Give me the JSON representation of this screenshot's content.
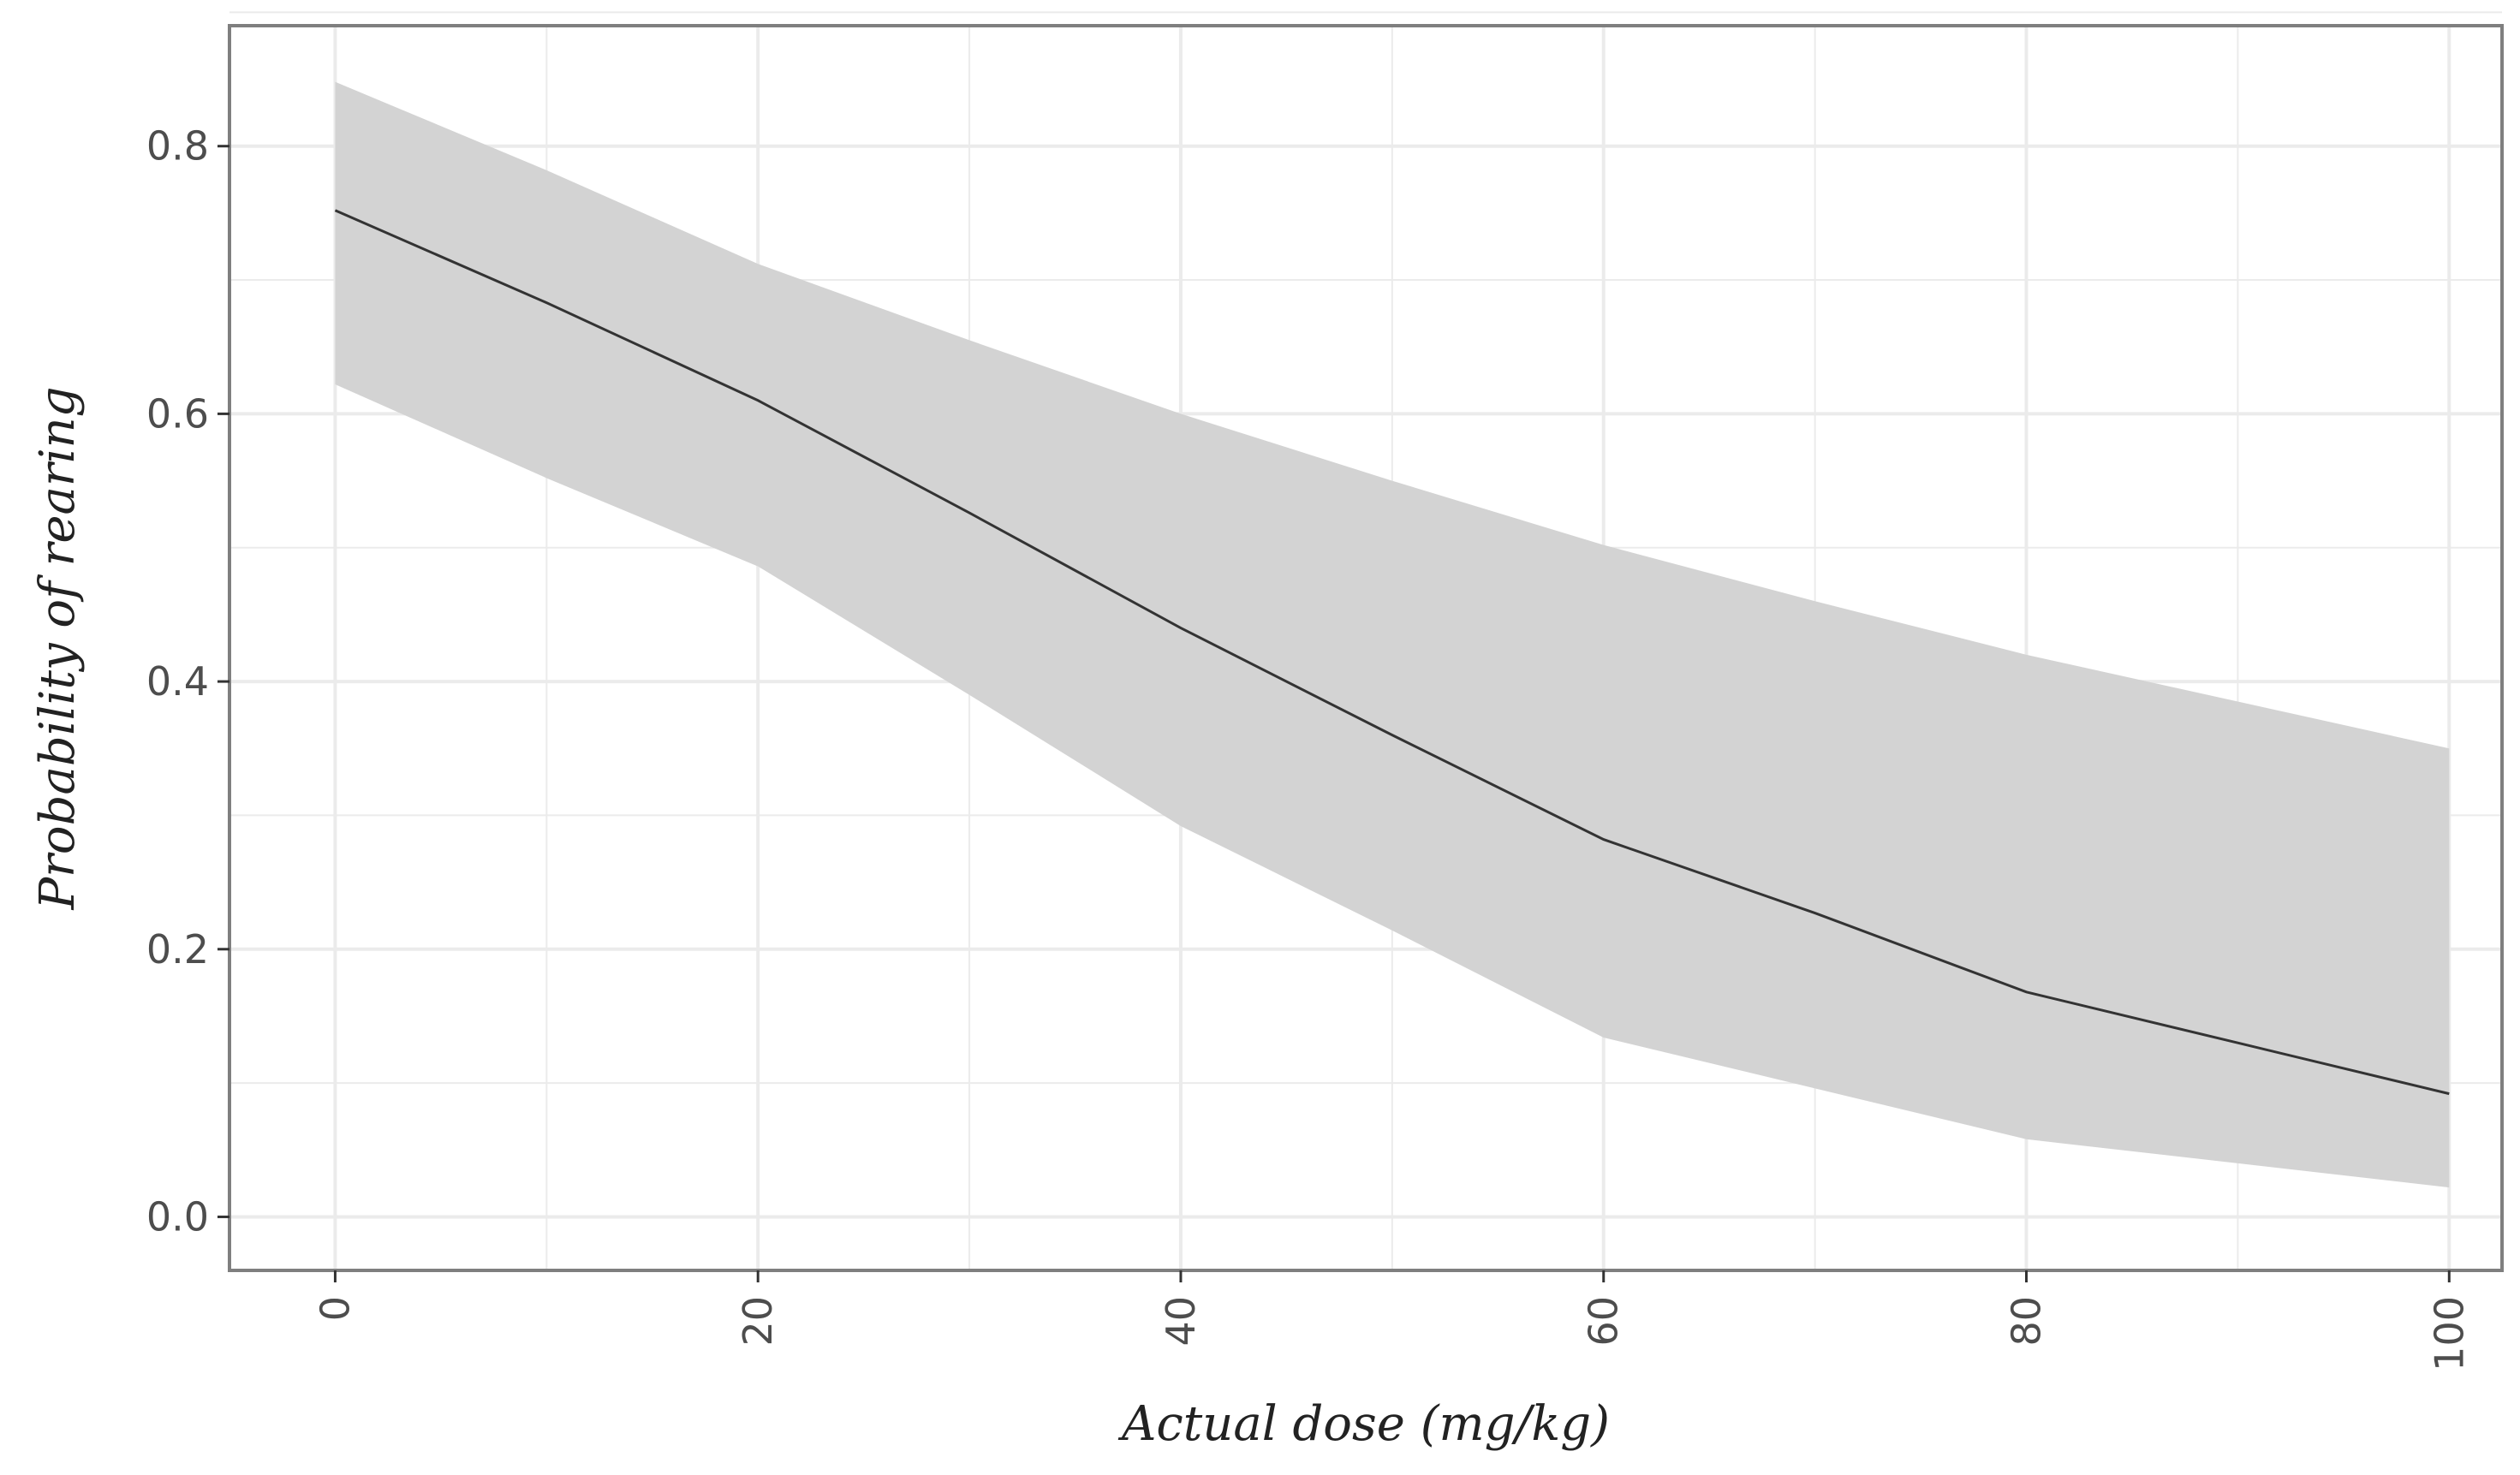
{
  "chart_data": {
    "type": "line",
    "xlabel": "Actual dose (mg/kg)",
    "ylabel": "Probability of rearing",
    "xlim": [
      -5,
      102.5
    ],
    "ylim": [
      -0.04,
      0.89
    ],
    "x_ticks": [
      0,
      20,
      40,
      60,
      80,
      100
    ],
    "x_tick_labels": [
      "0",
      "20",
      "40",
      "60",
      "80",
      "100"
    ],
    "y_ticks": [
      0.0,
      0.2,
      0.4,
      0.6,
      0.8
    ],
    "y_tick_labels": [
      "0.0",
      "0.2",
      "0.4",
      "0.6",
      "0.8"
    ],
    "grid": true,
    "legend": "none",
    "series": [
      {
        "x": [
          0,
          10,
          20,
          30,
          40,
          50,
          60,
          70,
          80,
          90,
          100
        ],
        "values": [
          0.752,
          0.683,
          0.61,
          0.526,
          0.44,
          0.36,
          0.282,
          0.227,
          0.168,
          0.13,
          0.092
        ],
        "lower": [
          0.622,
          0.552,
          0.486,
          0.39,
          0.292,
          0.214,
          0.134,
          0.096,
          0.058,
          0.04,
          0.022
        ],
        "upper": [
          0.848,
          0.782,
          0.712,
          0.655,
          0.6,
          0.55,
          0.502,
          0.46,
          0.42,
          0.385,
          0.35
        ]
      }
    ],
    "colors": {
      "line": "#333333",
      "ribbon": "#d3d3d3",
      "panel_border": "#7f7f7f",
      "grid": "#ebebeb"
    }
  }
}
